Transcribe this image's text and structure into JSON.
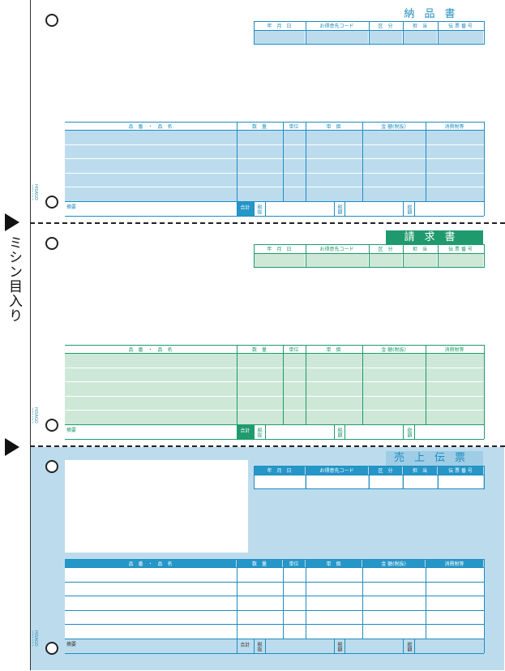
{
  "side_label": "ミシン目入り",
  "maker_mark": "HISAGO GB1153",
  "colors": {
    "blue_line": "#1f8cbf",
    "blue_fill": "#bcdcee",
    "blue_head": "#2596c8",
    "green_line": "#1d9a6c",
    "green_fill": "#cde8d6",
    "green_head": "#1f9a6e",
    "panel3_bg": "#bcdcee"
  },
  "header_columns": [
    "年　月　日",
    "お得意先コード",
    "区　分",
    "担　当",
    "伝 票 番 号"
  ],
  "item_columns": [
    "品　番　・　品　名",
    "数　量",
    "単位",
    "単　価",
    "金 額(税抜)",
    "消費税等"
  ],
  "footer": {
    "memo": "摘要",
    "total": "合計",
    "tax_excl": "税抜",
    "tax": "税額",
    "total_amount": "総額"
  },
  "sections": [
    {
      "title": "納品書",
      "theme": "blue"
    },
    {
      "title": "請求書",
      "theme": "green"
    },
    {
      "title": "売上伝票",
      "theme": "blue3"
    }
  ]
}
